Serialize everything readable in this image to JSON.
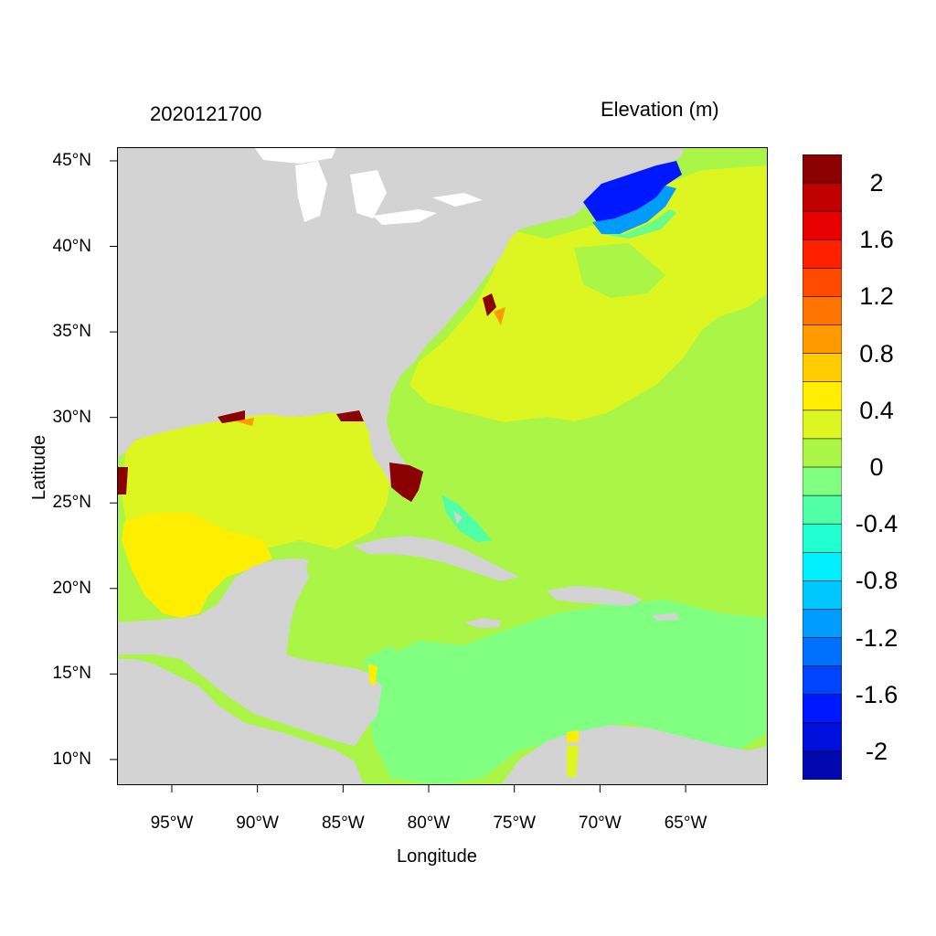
{
  "title_left": "2020121700",
  "title_right": "Elevation (m)",
  "axes": {
    "xlabel": "Longitude",
    "ylabel": "Latitude",
    "lon_range": [
      -98.2,
      -60.2
    ],
    "lat_range": [
      8.5,
      45.8
    ],
    "x_ticks": [
      {
        "label": "95°W",
        "lon": -95
      },
      {
        "label": "90°W",
        "lon": -90
      },
      {
        "label": "85°W",
        "lon": -85
      },
      {
        "label": "80°W",
        "lon": -80
      },
      {
        "label": "75°W",
        "lon": -75
      },
      {
        "label": "70°W",
        "lon": -70
      },
      {
        "label": "65°W",
        "lon": -65
      }
    ],
    "y_ticks": [
      {
        "label": "45°N",
        "lat": 45
      },
      {
        "label": "40°N",
        "lat": 40
      },
      {
        "label": "35°N",
        "lat": 35
      },
      {
        "label": "30°N",
        "lat": 30
      },
      {
        "label": "25°N",
        "lat": 25
      },
      {
        "label": "20°N",
        "lat": 20
      },
      {
        "label": "15°N",
        "lat": 15
      },
      {
        "label": "10°N",
        "lat": 10
      }
    ]
  },
  "colorbar": {
    "levels_top_to_bottom": [
      "#8b0000",
      "#c00000",
      "#e80000",
      "#ff2000",
      "#ff4a00",
      "#ff7300",
      "#ff9a00",
      "#ffcc00",
      "#ffee00",
      "#ddf520",
      "#aaf545",
      "#80ff80",
      "#50ffa5",
      "#20ffd0",
      "#00f0ff",
      "#00c8ff",
      "#009cff",
      "#0070ff",
      "#0044ff",
      "#0018ff",
      "#0010dd",
      "#0008b0"
    ],
    "labels": [
      "2",
      "1.6",
      "1.2",
      "0.8",
      "0.4",
      "0",
      "-0.4",
      "-0.8",
      "-1.2",
      "-1.6",
      "-2"
    ]
  },
  "colors": {
    "land": "#d3d3d3",
    "lakes": "#ffffff",
    "ocean_near_zero": "#aaf545",
    "gulf_low_positive": "#ddf520",
    "gulf_high_positive": "#ffee00",
    "caribbean_slight_negative": "#80ff80",
    "gulf_of_maine_low": "#0018ff",
    "south_florida_high": "#8b0000"
  }
}
